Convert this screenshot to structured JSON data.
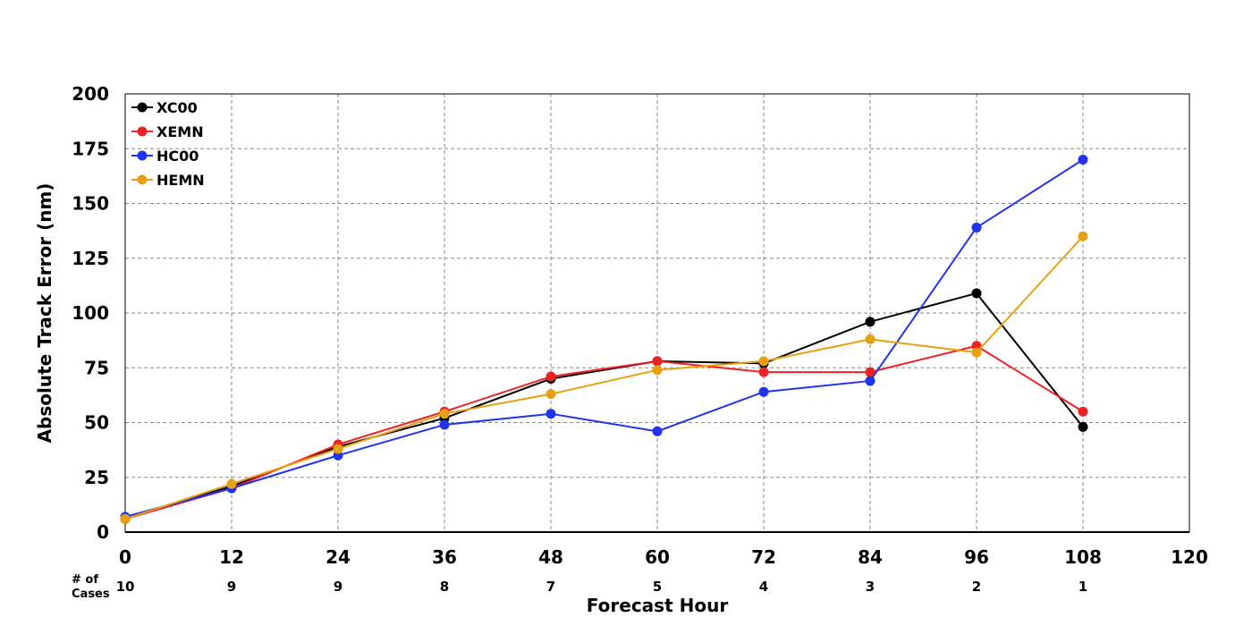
{
  "chart_data": {
    "type": "line",
    "xlabel": "Forecast Hour",
    "ylabel": "Absolute Track Error (nm)",
    "xlim": [
      0,
      120
    ],
    "ylim": [
      0,
      200
    ],
    "x_ticks": [
      0,
      12,
      24,
      36,
      48,
      60,
      72,
      84,
      96,
      108,
      120
    ],
    "y_ticks": [
      0,
      25,
      50,
      75,
      100,
      125,
      150,
      175,
      200
    ],
    "grid": true,
    "legend_position": "top-left",
    "cases_label": [
      "# of",
      "Cases"
    ],
    "cases": [
      10,
      9,
      9,
      8,
      7,
      5,
      4,
      3,
      2,
      1
    ],
    "x": [
      0,
      12,
      24,
      36,
      48,
      60,
      72,
      84,
      96,
      108
    ],
    "series": [
      {
        "name": "XC00",
        "color": "#000000",
        "values": [
          6,
          21,
          39,
          52,
          70,
          78,
          77,
          96,
          109,
          48
        ]
      },
      {
        "name": "XEMN",
        "color": "#ee2222",
        "values": [
          6,
          20,
          40,
          55,
          71,
          78,
          73,
          73,
          85,
          55
        ]
      },
      {
        "name": "HC00",
        "color": "#2233ee",
        "values": [
          7,
          20,
          35,
          49,
          54,
          46,
          64,
          69,
          139,
          170
        ]
      },
      {
        "name": "HEMN",
        "color": "#e8a010",
        "values": [
          6,
          22,
          38,
          54,
          63,
          74,
          78,
          88,
          82,
          135
        ]
      }
    ]
  }
}
